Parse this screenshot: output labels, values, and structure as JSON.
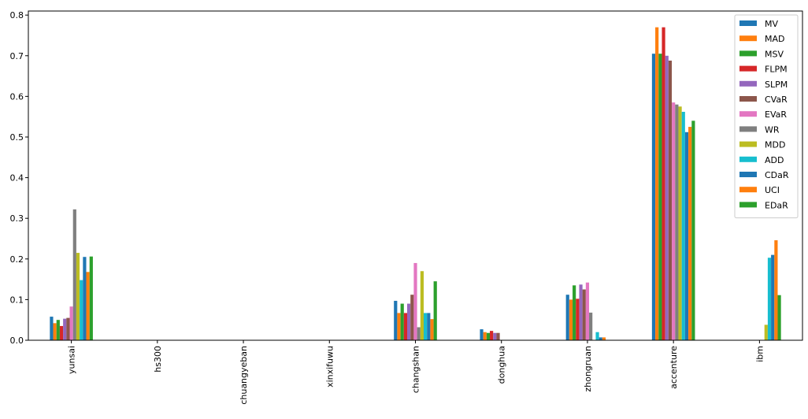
{
  "chart_data": {
    "type": "bar",
    "title": "",
    "xlabel": "",
    "ylabel": "",
    "ylim": [
      0,
      0.81
    ],
    "yticks": [
      0.0,
      0.1,
      0.2,
      0.3,
      0.4,
      0.5,
      0.6,
      0.7,
      0.8
    ],
    "ytick_labels": [
      "0.0",
      "0.1",
      "0.2",
      "0.3",
      "0.4",
      "0.5",
      "0.6",
      "0.7",
      "0.8"
    ],
    "grid": false,
    "legend_position": "top-right",
    "categories": [
      "yunsai",
      "hs300",
      "chuangyeban",
      "xinxifuwu",
      "changshan",
      "donghua",
      "zhongruan",
      "accenture",
      "ibm"
    ],
    "series": [
      {
        "name": "MV",
        "color": "#1f77b4",
        "values": [
          0.058,
          0.0,
          0.0,
          0.0,
          0.097,
          0.027,
          0.112,
          0.705,
          0.0
        ]
      },
      {
        "name": "MAD",
        "color": "#ff7f0e",
        "values": [
          0.042,
          0.0,
          0.0,
          0.0,
          0.067,
          0.02,
          0.1,
          0.77,
          0.0
        ]
      },
      {
        "name": "MSV",
        "color": "#2ca02c",
        "values": [
          0.05,
          0.0,
          0.0,
          0.0,
          0.09,
          0.018,
          0.135,
          0.705,
          0.0
        ]
      },
      {
        "name": "FLPM",
        "color": "#d62728",
        "values": [
          0.035,
          0.0,
          0.0,
          0.0,
          0.067,
          0.023,
          0.102,
          0.77,
          0.0
        ]
      },
      {
        "name": "SLPM",
        "color": "#9467bd",
        "values": [
          0.053,
          0.0,
          0.0,
          0.0,
          0.09,
          0.018,
          0.137,
          0.7,
          0.0
        ]
      },
      {
        "name": "CVaR",
        "color": "#8c564b",
        "values": [
          0.055,
          0.0,
          0.0,
          0.0,
          0.112,
          0.018,
          0.125,
          0.688,
          0.0
        ]
      },
      {
        "name": "EVaR",
        "color": "#e377c2",
        "values": [
          0.083,
          0.0,
          0.0,
          0.0,
          0.19,
          0.0,
          0.142,
          0.585,
          0.0
        ]
      },
      {
        "name": "WR",
        "color": "#7f7f7f",
        "values": [
          0.322,
          0.0,
          0.0,
          0.0,
          0.032,
          0.0,
          0.068,
          0.58,
          0.0
        ]
      },
      {
        "name": "MDD",
        "color": "#bcbd22",
        "values": [
          0.215,
          0.0,
          0.0,
          0.0,
          0.17,
          0.0,
          0.0,
          0.575,
          0.038
        ]
      },
      {
        "name": "ADD",
        "color": "#17becf",
        "values": [
          0.148,
          0.0,
          0.0,
          0.0,
          0.067,
          0.0,
          0.02,
          0.562,
          0.203
        ]
      },
      {
        "name": "CDaR",
        "color": "#1f77b4",
        "values": [
          0.205,
          0.0,
          0.0,
          0.0,
          0.067,
          0.0,
          0.007,
          0.512,
          0.21
        ]
      },
      {
        "name": "UCI",
        "color": "#ff7f0e",
        "values": [
          0.168,
          0.0,
          0.0,
          0.0,
          0.052,
          0.0,
          0.007,
          0.525,
          0.246
        ]
      },
      {
        "name": "EDaR",
        "color": "#2ca02c",
        "values": [
          0.206,
          0.0,
          0.0,
          0.0,
          0.145,
          0.0,
          0.0,
          0.54,
          0.111
        ]
      }
    ]
  }
}
